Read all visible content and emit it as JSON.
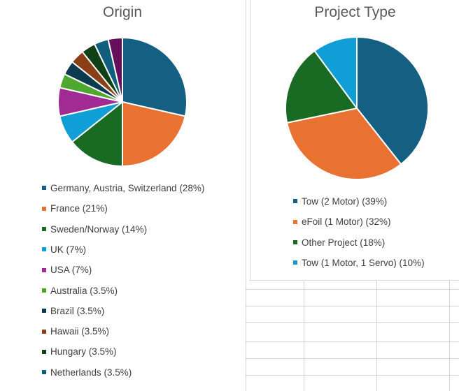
{
  "chart_data": [
    {
      "type": "pie",
      "title": "Origin",
      "legend_position": "bottom",
      "series": [
        {
          "name": "Germany, Austria, Switzerland (28%)",
          "value": 28,
          "color": "#156082"
        },
        {
          "name": "France (21%)",
          "value": 21,
          "color": "#E97132"
        },
        {
          "name": "Sweden/Norway (14%)",
          "value": 14,
          "color": "#196B24"
        },
        {
          "name": "UK (7%)",
          "value": 7,
          "color": "#0F9ED5"
        },
        {
          "name": "USA (7%)",
          "value": 7,
          "color": "#A02B93"
        },
        {
          "name": "Australia (3.5%)",
          "value": 3.5,
          "color": "#4EA72E"
        },
        {
          "name": "Brazil (3.5%)",
          "value": 3.5,
          "color": "#0C3A4E"
        },
        {
          "name": "Hawaii (3.5%)",
          "value": 3.5,
          "color": "#8B3F17"
        },
        {
          "name": "Hungary (3.5%)",
          "value": 3.5,
          "color": "#0F4016"
        },
        {
          "name": "Netherlands (3.5%)",
          "value": 3.5,
          "color": "#105E7D"
        },
        {
          "name": "",
          "value": 3.5,
          "color": "#660F5D"
        }
      ]
    },
    {
      "type": "pie",
      "title": "Project Type",
      "legend_position": "bottom",
      "series": [
        {
          "name": "Tow (2 Motor) (39%)",
          "value": 39,
          "color": "#156082"
        },
        {
          "name": "eFoil (1 Motor) (32%)",
          "value": 32,
          "color": "#E97132"
        },
        {
          "name": "Other Project (18%)",
          "value": 18,
          "color": "#196B24"
        },
        {
          "name": "Tow (1 Motor, 1 Servo) (10%)",
          "value": 10,
          "color": "#0F9ED5"
        }
      ]
    }
  ]
}
